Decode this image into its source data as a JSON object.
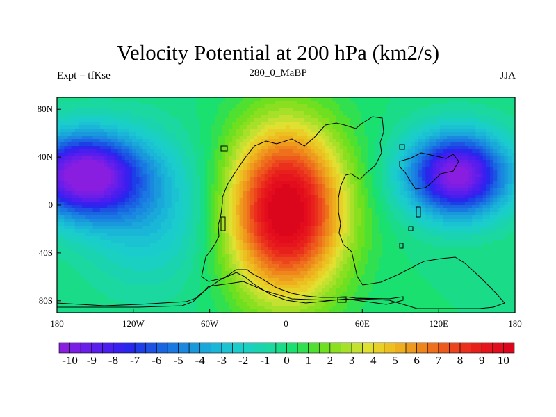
{
  "chart_data": {
    "type": "heatmap",
    "title": "Velocity Potential at 200 hPa (km2/s)",
    "left_string": "Expt = tfKse",
    "center_string": "280_0_MaBP",
    "right_string": "JJA",
    "xlim": [
      -180,
      180
    ],
    "ylim": [
      -90,
      90
    ],
    "x_ticks": [
      -180,
      -120,
      -60,
      0,
      60,
      120,
      180
    ],
    "x_tick_labels": [
      "180",
      "120W",
      "60W",
      "0",
      "60E",
      "120E",
      "180"
    ],
    "y_ticks": [
      80,
      40,
      0,
      -40,
      -80
    ],
    "y_tick_labels": [
      "80N",
      "40N",
      "0",
      "40S",
      "80S"
    ],
    "colorbar_labels": [
      "-10",
      "-9",
      "-8",
      "-7",
      "-6",
      "-5",
      "-4",
      "-3",
      "-2",
      "-1",
      "0",
      "1",
      "2",
      "3",
      "4",
      "5",
      "6",
      "7",
      "8",
      "9",
      "10"
    ],
    "colorbar_levels": [
      -10.5,
      -10,
      -9.5,
      -9,
      -8.5,
      -8,
      -7.5,
      -7,
      -6.5,
      -6,
      -5.5,
      -5,
      -4.5,
      -4,
      -3.5,
      -3,
      -2.5,
      -2,
      -1.5,
      -1,
      -0.5,
      0,
      0.5,
      1,
      1.5,
      2,
      2.5,
      3,
      3.5,
      4,
      4.5,
      5,
      5.5,
      6,
      6.5,
      7,
      7.5,
      8,
      8.5,
      9,
      9.5,
      10,
      10.5
    ],
    "colorbar_colors": [
      "#8a1ee0",
      "#7a1ee6",
      "#6a1eea",
      "#5a1eec",
      "#4a1eee",
      "#3a20f0",
      "#2828ec",
      "#1e3ee8",
      "#1e52e4",
      "#1a66e2",
      "#1a78e2",
      "#1a88e0",
      "#1a98dc",
      "#1aa8da",
      "#1ab6d8",
      "#1ac2d2",
      "#1acccc",
      "#1ad0c0",
      "#1ad4b0",
      "#1ad8a0",
      "#1adc88",
      "#1ae070",
      "#30e050",
      "#50e030",
      "#6ee020",
      "#8ae020",
      "#a6e028",
      "#c4e030",
      "#e0e030",
      "#e8d028",
      "#ecc020",
      "#eeae1e",
      "#ee9a1e",
      "#ee861c",
      "#ee701c",
      "#ee5a1c",
      "#ec441c",
      "#ea301c",
      "#e8201c",
      "#e6141c",
      "#e20c1c",
      "#dc061c"
    ],
    "field": {
      "type": "sum-of-gaussians",
      "units": "km2/s",
      "components": [
        {
          "lon": 0,
          "lat": -5,
          "amplitude": 11,
          "lon_scale": 45,
          "lat_scale": 70
        },
        {
          "lon": 135,
          "lat": 25,
          "amplitude": -10.5,
          "lon_scale": 40,
          "lat_scale": 35
        },
        {
          "lon": -160,
          "lat": 25,
          "amplitude": -10.5,
          "lon_scale": 45,
          "lat_scale": 35
        },
        {
          "lon": -110,
          "lat": -5,
          "amplitude": -3,
          "lon_scale": 50,
          "lat_scale": 60
        }
      ]
    }
  }
}
